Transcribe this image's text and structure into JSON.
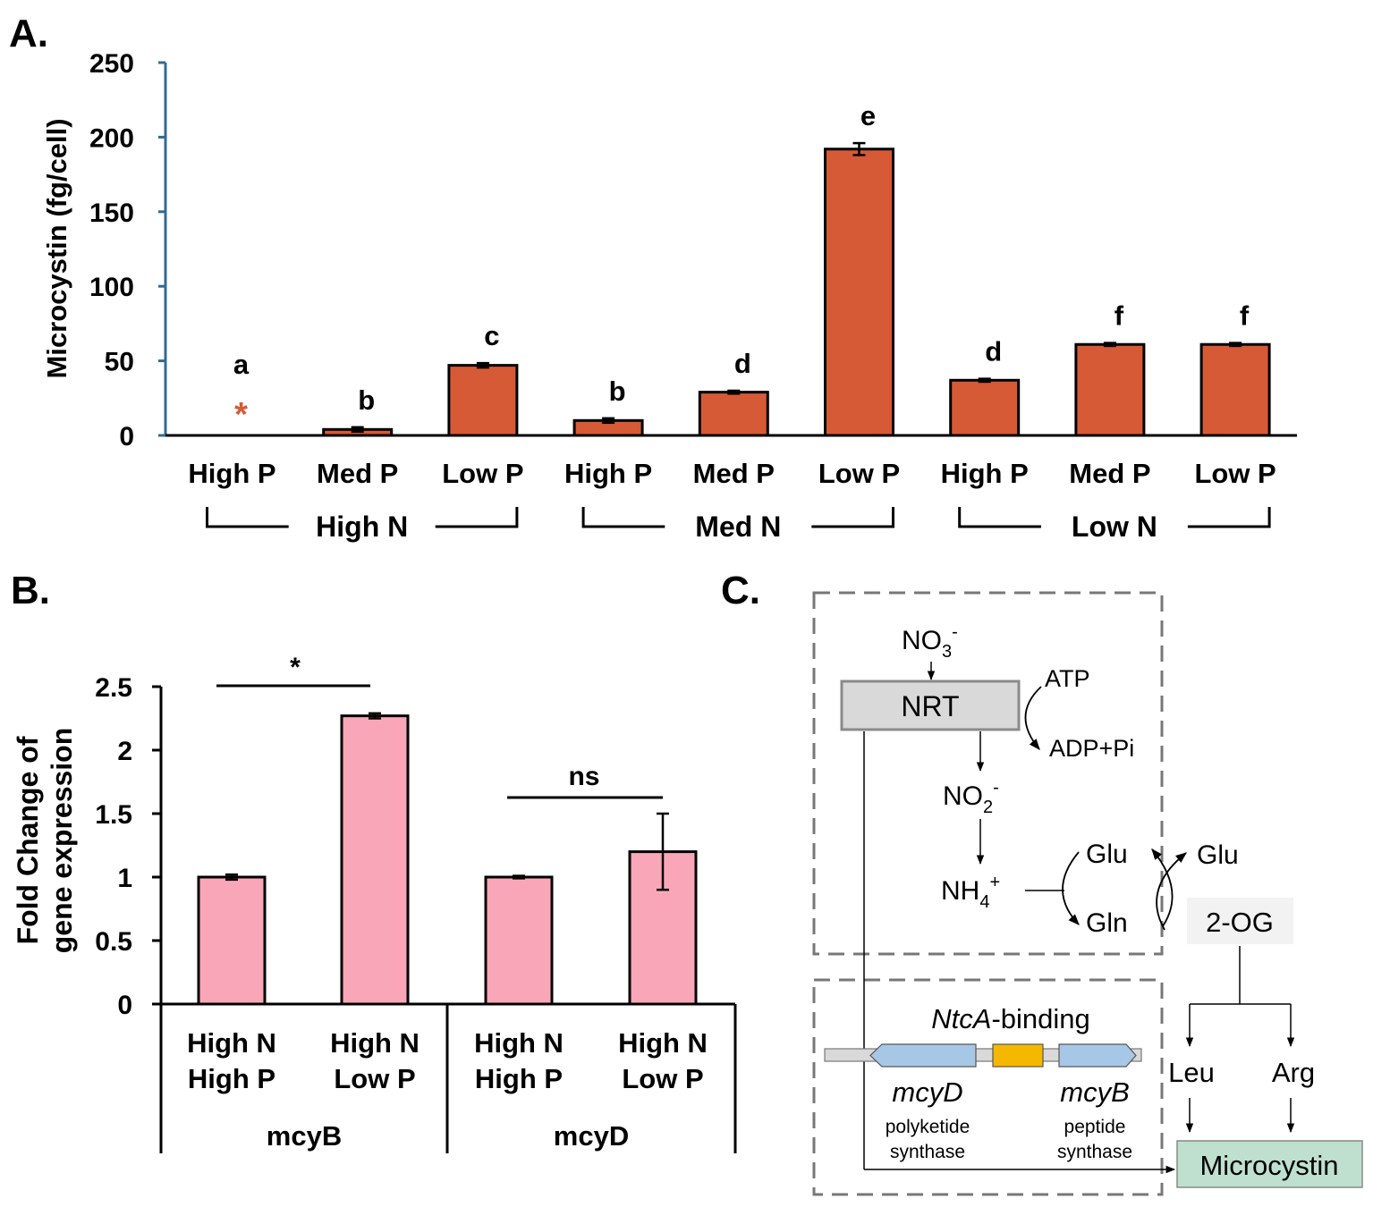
{
  "panels": {
    "a": "A.",
    "b": "B.",
    "c": "C."
  },
  "chart_data": [
    {
      "type": "bar",
      "title": "",
      "xlabel": "",
      "ylabel": "Microcystin (fg/cell)",
      "ylim": [
        0,
        250
      ],
      "yticks": [
        "0",
        "50",
        "100",
        "150",
        "200",
        "250"
      ],
      "categories": [
        "High P",
        "Med P",
        "Low P",
        "High P",
        "Med P",
        "Low P",
        "High P",
        "Med P",
        "Low P"
      ],
      "groups": [
        "High N",
        "Med N",
        "Low N"
      ],
      "values": [
        0,
        4,
        47,
        10,
        29,
        192,
        37,
        61,
        61
      ],
      "errors": [
        0,
        1.5,
        1.5,
        1.5,
        1,
        4,
        1,
        1,
        1
      ],
      "letters": [
        "a",
        "b",
        "c",
        "b",
        "d",
        "e",
        "d",
        "f",
        "f"
      ],
      "marker_note": "*",
      "bar_color": "#d65a35",
      "axis_color": "#2f6b93"
    },
    {
      "type": "bar",
      "title": "",
      "xlabel": "",
      "ylabel": [
        "Fold Change of",
        "gene expression"
      ],
      "ylim": [
        0,
        2.5
      ],
      "yticks": [
        "0",
        "0.5",
        "1",
        "1.5",
        "2",
        "2.5"
      ],
      "categories": [
        [
          "High N",
          "High P"
        ],
        [
          "High N",
          "Low P"
        ],
        [
          "High N",
          "High P"
        ],
        [
          "High N",
          "Low P"
        ]
      ],
      "groups": [
        "mcyB",
        "mcyD"
      ],
      "values": [
        1.0,
        2.27,
        1.0,
        1.2
      ],
      "errors": [
        0.02,
        0.02,
        0.01,
        0.3
      ],
      "significance": [
        "*",
        "ns"
      ],
      "bar_color": "#f9a7b8"
    }
  ],
  "diagram": {
    "no3": "NO",
    "no3_sub": "3",
    "no3_sup": "-",
    "nrt": "NRT",
    "atp": "ATP",
    "adp": "ADP+Pi",
    "no2": "NO",
    "no2_sub": "2",
    "no2_sup": "-",
    "nh4": "NH",
    "nh4_sub": "4",
    "nh4_sup": "+",
    "glu1": "Glu",
    "gln": "Gln",
    "glu2": "Glu",
    "og": "2-OG",
    "ntca_italic": "NtcA",
    "ntca_rest": "-binding",
    "mcyd": "mcyD",
    "mcyd_desc1": "polyketide",
    "mcyd_desc2": "synthase",
    "mcyb": "mcyB",
    "mcyb_desc1": "peptide",
    "mcyb_desc2": "synthase",
    "leu": "Leu",
    "arg": "Arg",
    "microcystin": "Microcystin",
    "colors": {
      "nrt_box": "#d9d9d9",
      "og_box": "#f2f2f2",
      "gene": "#a7c7e7",
      "binding_site": "#f5b800",
      "microcystin_box": "#bfe0cf"
    }
  }
}
